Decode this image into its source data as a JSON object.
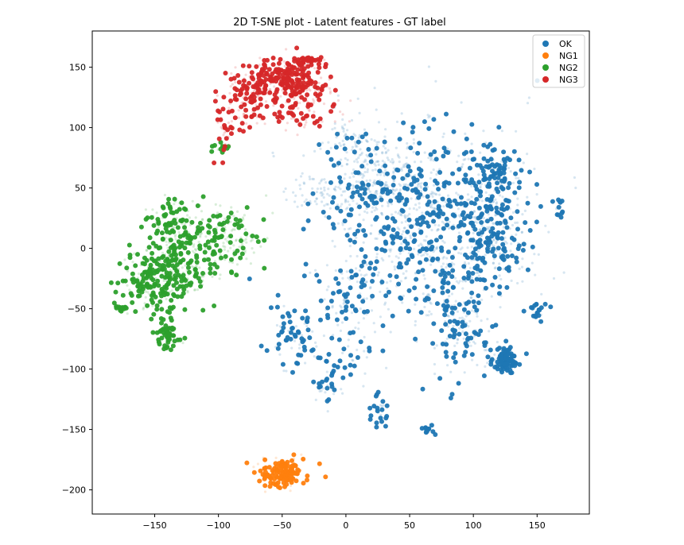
{
  "chart_data": {
    "type": "scatter",
    "title": "2D T-SNE plot - Latent features - GT label",
    "xlabel": "",
    "ylabel": "",
    "xlim": [
      -199,
      191
    ],
    "ylim": [
      -220,
      180
    ],
    "x_ticks": [
      -150,
      -100,
      -50,
      0,
      50,
      100,
      150
    ],
    "y_ticks": [
      150,
      100,
      50,
      0,
      -50,
      -100,
      -150,
      -200
    ],
    "x_tick_labels": [
      "−150",
      "−100",
      "−50",
      "0",
      "50",
      "100",
      "150"
    ],
    "y_tick_labels": [
      "150",
      "100",
      "50",
      "0",
      "−50",
      "−100",
      "−150",
      "−200"
    ],
    "grid": false,
    "legend_position": "top-right",
    "legend": [
      "OK",
      "NG1",
      "NG2",
      "NG3"
    ],
    "series": [
      {
        "name": "OK",
        "color": "#1f77b4",
        "clusters": [
          {
            "cx": 60,
            "cy": 20,
            "sx": 38,
            "sy": 42,
            "n": 900,
            "faint": 0.6
          },
          {
            "cx": 20,
            "cy": 60,
            "sx": 18,
            "sy": 18,
            "n": 220,
            "faint": 0.8
          },
          {
            "cx": 115,
            "cy": 10,
            "sx": 14,
            "sy": 22,
            "n": 220,
            "faint": 0.5
          },
          {
            "cx": 118,
            "cy": 65,
            "sx": 9,
            "sy": 10,
            "n": 90,
            "faint": 0.3
          },
          {
            "cx": 90,
            "cy": -60,
            "sx": 12,
            "sy": 25,
            "n": 160,
            "faint": 0.5
          },
          {
            "cx": 125,
            "cy": -92,
            "sx": 5,
            "sy": 5,
            "n": 90,
            "faint": 0.1
          },
          {
            "cx": -40,
            "cy": -75,
            "sx": 10,
            "sy": 18,
            "n": 70,
            "faint": 0.4
          },
          {
            "cx": 0,
            "cy": -55,
            "sx": 12,
            "sy": 30,
            "n": 120,
            "faint": 0.5
          },
          {
            "cx": -15,
            "cy": -115,
            "sx": 5,
            "sy": 8,
            "n": 25,
            "faint": 0.4
          },
          {
            "cx": 25,
            "cy": -135,
            "sx": 4,
            "sy": 8,
            "n": 25,
            "faint": 0.4
          },
          {
            "cx": 65,
            "cy": -150,
            "sx": 4,
            "sy": 2,
            "n": 15,
            "faint": 0.1
          },
          {
            "cx": 150,
            "cy": -52,
            "sx": 4,
            "sy": 4,
            "n": 20,
            "faint": 0.2
          },
          {
            "cx": 168,
            "cy": 35,
            "sx": 2,
            "sy": 5,
            "n": 15,
            "faint": 0.2
          },
          {
            "cx": -20,
            "cy": 45,
            "sx": 15,
            "sy": 8,
            "n": 60,
            "faint": 0.9
          },
          {
            "cx": 0,
            "cy": 90,
            "sx": 8,
            "sy": 6,
            "n": 40,
            "faint": 0.9
          }
        ]
      },
      {
        "name": "NG1",
        "color": "#ff7f0e",
        "clusters": [
          {
            "cx": -50,
            "cy": -186,
            "sx": 9,
            "sy": 6,
            "n": 160,
            "faint": 0.3
          }
        ]
      },
      {
        "name": "NG2",
        "color": "#2ca02c",
        "clusters": [
          {
            "cx": -148,
            "cy": -25,
            "sx": 14,
            "sy": 14,
            "n": 260,
            "faint": 0.4
          },
          {
            "cx": -125,
            "cy": -5,
            "sx": 15,
            "sy": 16,
            "n": 220,
            "faint": 0.5
          },
          {
            "cx": -90,
            "cy": 10,
            "sx": 14,
            "sy": 12,
            "n": 140,
            "faint": 0.7
          },
          {
            "cx": -140,
            "cy": 25,
            "sx": 8,
            "sy": 8,
            "n": 60,
            "faint": 0.4
          },
          {
            "cx": -140,
            "cy": -72,
            "sx": 5,
            "sy": 6,
            "n": 60,
            "faint": 0.2
          },
          {
            "cx": -177,
            "cy": -49,
            "sx": 3,
            "sy": 2,
            "n": 15,
            "faint": 0.1
          },
          {
            "cx": -97,
            "cy": 85,
            "sx": 3,
            "sy": 3,
            "n": 15,
            "faint": 0.4
          }
        ]
      },
      {
        "name": "NG3",
        "color": "#d62728",
        "clusters": [
          {
            "cx": -50,
            "cy": 140,
            "sx": 12,
            "sy": 8,
            "n": 200,
            "faint": 0.3
          },
          {
            "cx": -75,
            "cy": 125,
            "sx": 10,
            "sy": 12,
            "n": 140,
            "faint": 0.5
          },
          {
            "cx": -30,
            "cy": 125,
            "sx": 12,
            "sy": 14,
            "n": 140,
            "faint": 0.6
          },
          {
            "cx": -95,
            "cy": 100,
            "sx": 4,
            "sy": 10,
            "n": 40,
            "faint": 0.5
          },
          {
            "cx": -30,
            "cy": 155,
            "sx": 6,
            "sy": 3,
            "n": 50,
            "faint": 0.2
          }
        ]
      }
    ]
  }
}
